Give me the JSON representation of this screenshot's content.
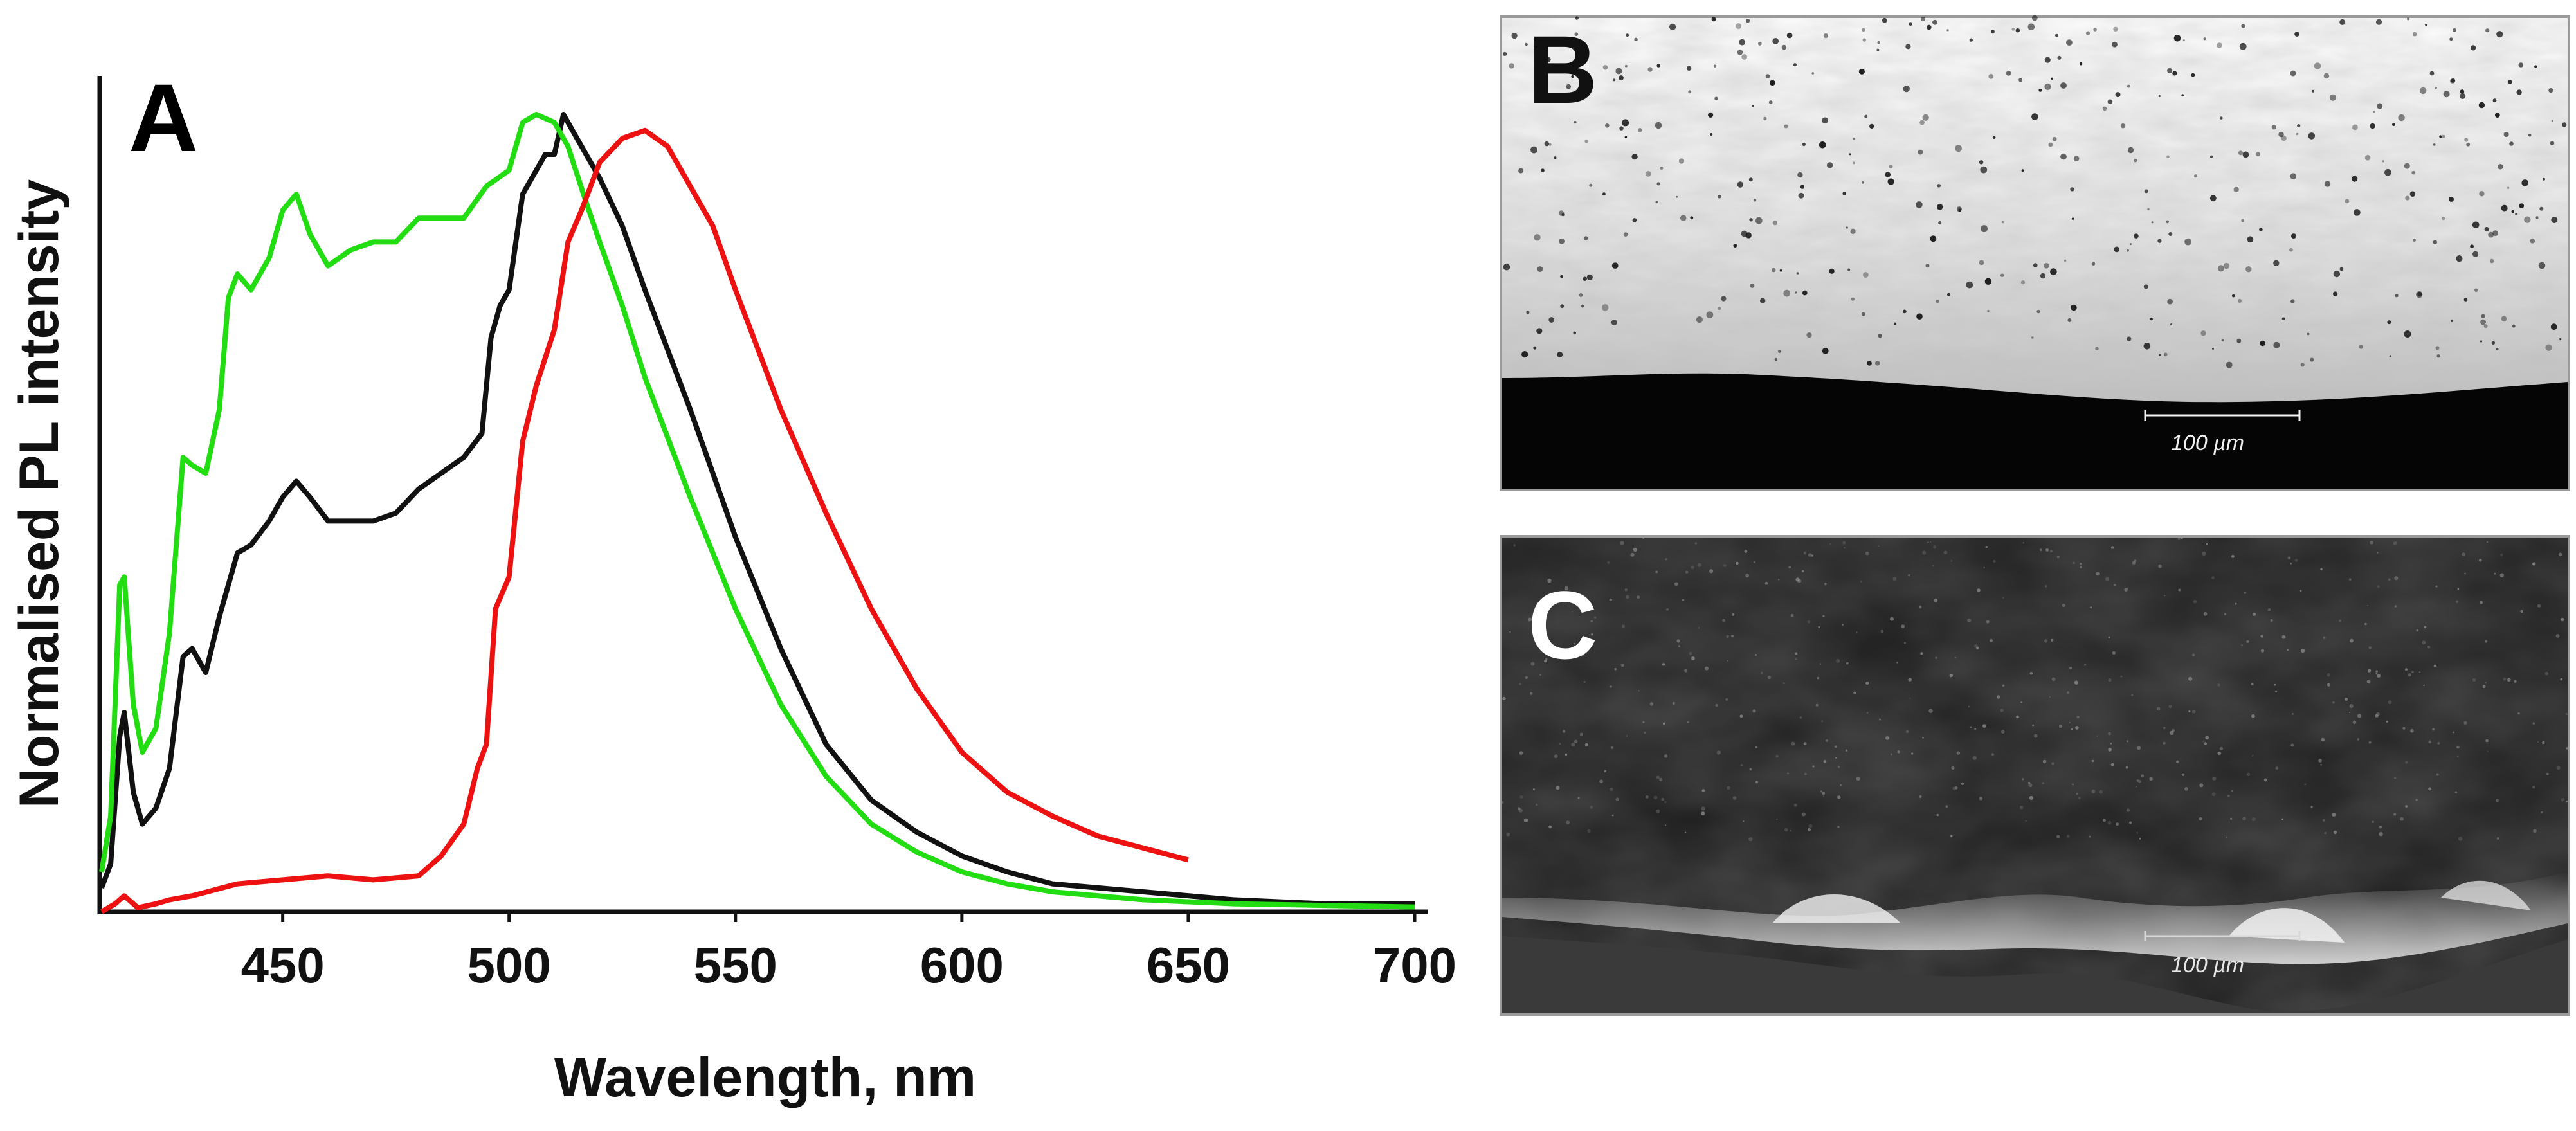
{
  "panels": {
    "a": {
      "letter": "A"
    },
    "b": {
      "letter": "B",
      "scale_bar_label": "100 µm"
    },
    "c": {
      "letter": "C",
      "scale_bar_label": "100 µm"
    }
  },
  "chart_data": {
    "type": "line",
    "title": "",
    "xlabel": "Wavelength, nm",
    "ylabel": "Normalised PL intensity",
    "xlim": [
      410,
      700
    ],
    "ylim": [
      0,
      1.0
    ],
    "x_ticks": [
      450,
      500,
      550,
      600,
      650,
      700
    ],
    "y_ticks_shown": false,
    "grid": false,
    "legend": "none",
    "series": [
      {
        "color": "#111111",
        "points": [
          [
            410,
            0.03
          ],
          [
            412,
            0.06
          ],
          [
            414,
            0.22
          ],
          [
            415,
            0.25
          ],
          [
            417,
            0.15
          ],
          [
            419,
            0.11
          ],
          [
            422,
            0.13
          ],
          [
            425,
            0.18
          ],
          [
            428,
            0.32
          ],
          [
            430,
            0.33
          ],
          [
            433,
            0.3
          ],
          [
            436,
            0.37
          ],
          [
            440,
            0.45
          ],
          [
            443,
            0.46
          ],
          [
            447,
            0.49
          ],
          [
            450,
            0.52
          ],
          [
            453,
            0.54
          ],
          [
            456,
            0.52
          ],
          [
            460,
            0.49
          ],
          [
            465,
            0.49
          ],
          [
            470,
            0.49
          ],
          [
            475,
            0.5
          ],
          [
            480,
            0.53
          ],
          [
            485,
            0.55
          ],
          [
            490,
            0.57
          ],
          [
            494,
            0.6
          ],
          [
            496,
            0.72
          ],
          [
            498,
            0.76
          ],
          [
            500,
            0.78
          ],
          [
            503,
            0.9
          ],
          [
            506,
            0.93
          ],
          [
            508,
            0.95
          ],
          [
            510,
            0.95
          ],
          [
            512,
            1.0
          ],
          [
            515,
            0.97
          ],
          [
            520,
            0.92
          ],
          [
            525,
            0.86
          ],
          [
            530,
            0.78
          ],
          [
            540,
            0.63
          ],
          [
            550,
            0.47
          ],
          [
            560,
            0.33
          ],
          [
            570,
            0.21
          ],
          [
            580,
            0.14
          ],
          [
            590,
            0.1
          ],
          [
            600,
            0.07
          ],
          [
            610,
            0.05
          ],
          [
            620,
            0.035
          ],
          [
            640,
            0.025
          ],
          [
            660,
            0.015
          ],
          [
            680,
            0.01
          ],
          [
            700,
            0.01
          ]
        ]
      },
      {
        "color": "#22dd11",
        "points": [
          [
            410,
            0.05
          ],
          [
            412,
            0.12
          ],
          [
            414,
            0.41
          ],
          [
            415,
            0.42
          ],
          [
            417,
            0.26
          ],
          [
            419,
            0.2
          ],
          [
            422,
            0.23
          ],
          [
            425,
            0.35
          ],
          [
            428,
            0.57
          ],
          [
            430,
            0.56
          ],
          [
            433,
            0.55
          ],
          [
            436,
            0.63
          ],
          [
            438,
            0.77
          ],
          [
            440,
            0.8
          ],
          [
            443,
            0.78
          ],
          [
            447,
            0.82
          ],
          [
            450,
            0.88
          ],
          [
            453,
            0.9
          ],
          [
            456,
            0.85
          ],
          [
            460,
            0.81
          ],
          [
            465,
            0.83
          ],
          [
            470,
            0.84
          ],
          [
            475,
            0.84
          ],
          [
            480,
            0.87
          ],
          [
            485,
            0.87
          ],
          [
            490,
            0.87
          ],
          [
            495,
            0.91
          ],
          [
            500,
            0.93
          ],
          [
            503,
            0.99
          ],
          [
            506,
            1.0
          ],
          [
            510,
            0.99
          ],
          [
            513,
            0.96
          ],
          [
            517,
            0.89
          ],
          [
            520,
            0.84
          ],
          [
            525,
            0.76
          ],
          [
            530,
            0.67
          ],
          [
            540,
            0.52
          ],
          [
            550,
            0.38
          ],
          [
            560,
            0.26
          ],
          [
            570,
            0.17
          ],
          [
            580,
            0.11
          ],
          [
            590,
            0.075
          ],
          [
            600,
            0.05
          ],
          [
            610,
            0.035
          ],
          [
            620,
            0.025
          ],
          [
            640,
            0.015
          ],
          [
            660,
            0.01
          ],
          [
            680,
            0.008
          ],
          [
            700,
            0.006
          ]
        ]
      },
      {
        "color": "#ee1111",
        "points": [
          [
            410,
            0.0
          ],
          [
            413,
            0.01
          ],
          [
            415,
            0.02
          ],
          [
            418,
            0.005
          ],
          [
            422,
            0.01
          ],
          [
            425,
            0.015
          ],
          [
            430,
            0.02
          ],
          [
            440,
            0.035
          ],
          [
            450,
            0.04
          ],
          [
            460,
            0.045
          ],
          [
            470,
            0.04
          ],
          [
            480,
            0.045
          ],
          [
            485,
            0.07
          ],
          [
            490,
            0.11
          ],
          [
            493,
            0.18
          ],
          [
            495,
            0.21
          ],
          [
            497,
            0.38
          ],
          [
            500,
            0.42
          ],
          [
            503,
            0.59
          ],
          [
            506,
            0.66
          ],
          [
            510,
            0.73
          ],
          [
            513,
            0.84
          ],
          [
            516,
            0.88
          ],
          [
            520,
            0.94
          ],
          [
            525,
            0.97
          ],
          [
            530,
            0.98
          ],
          [
            535,
            0.96
          ],
          [
            540,
            0.91
          ],
          [
            545,
            0.86
          ],
          [
            550,
            0.78
          ],
          [
            560,
            0.63
          ],
          [
            570,
            0.5
          ],
          [
            580,
            0.38
          ],
          [
            590,
            0.28
          ],
          [
            600,
            0.2
          ],
          [
            610,
            0.15
          ],
          [
            620,
            0.12
          ],
          [
            630,
            0.095
          ],
          [
            640,
            0.08
          ],
          [
            650,
            0.065
          ]
        ]
      }
    ]
  }
}
